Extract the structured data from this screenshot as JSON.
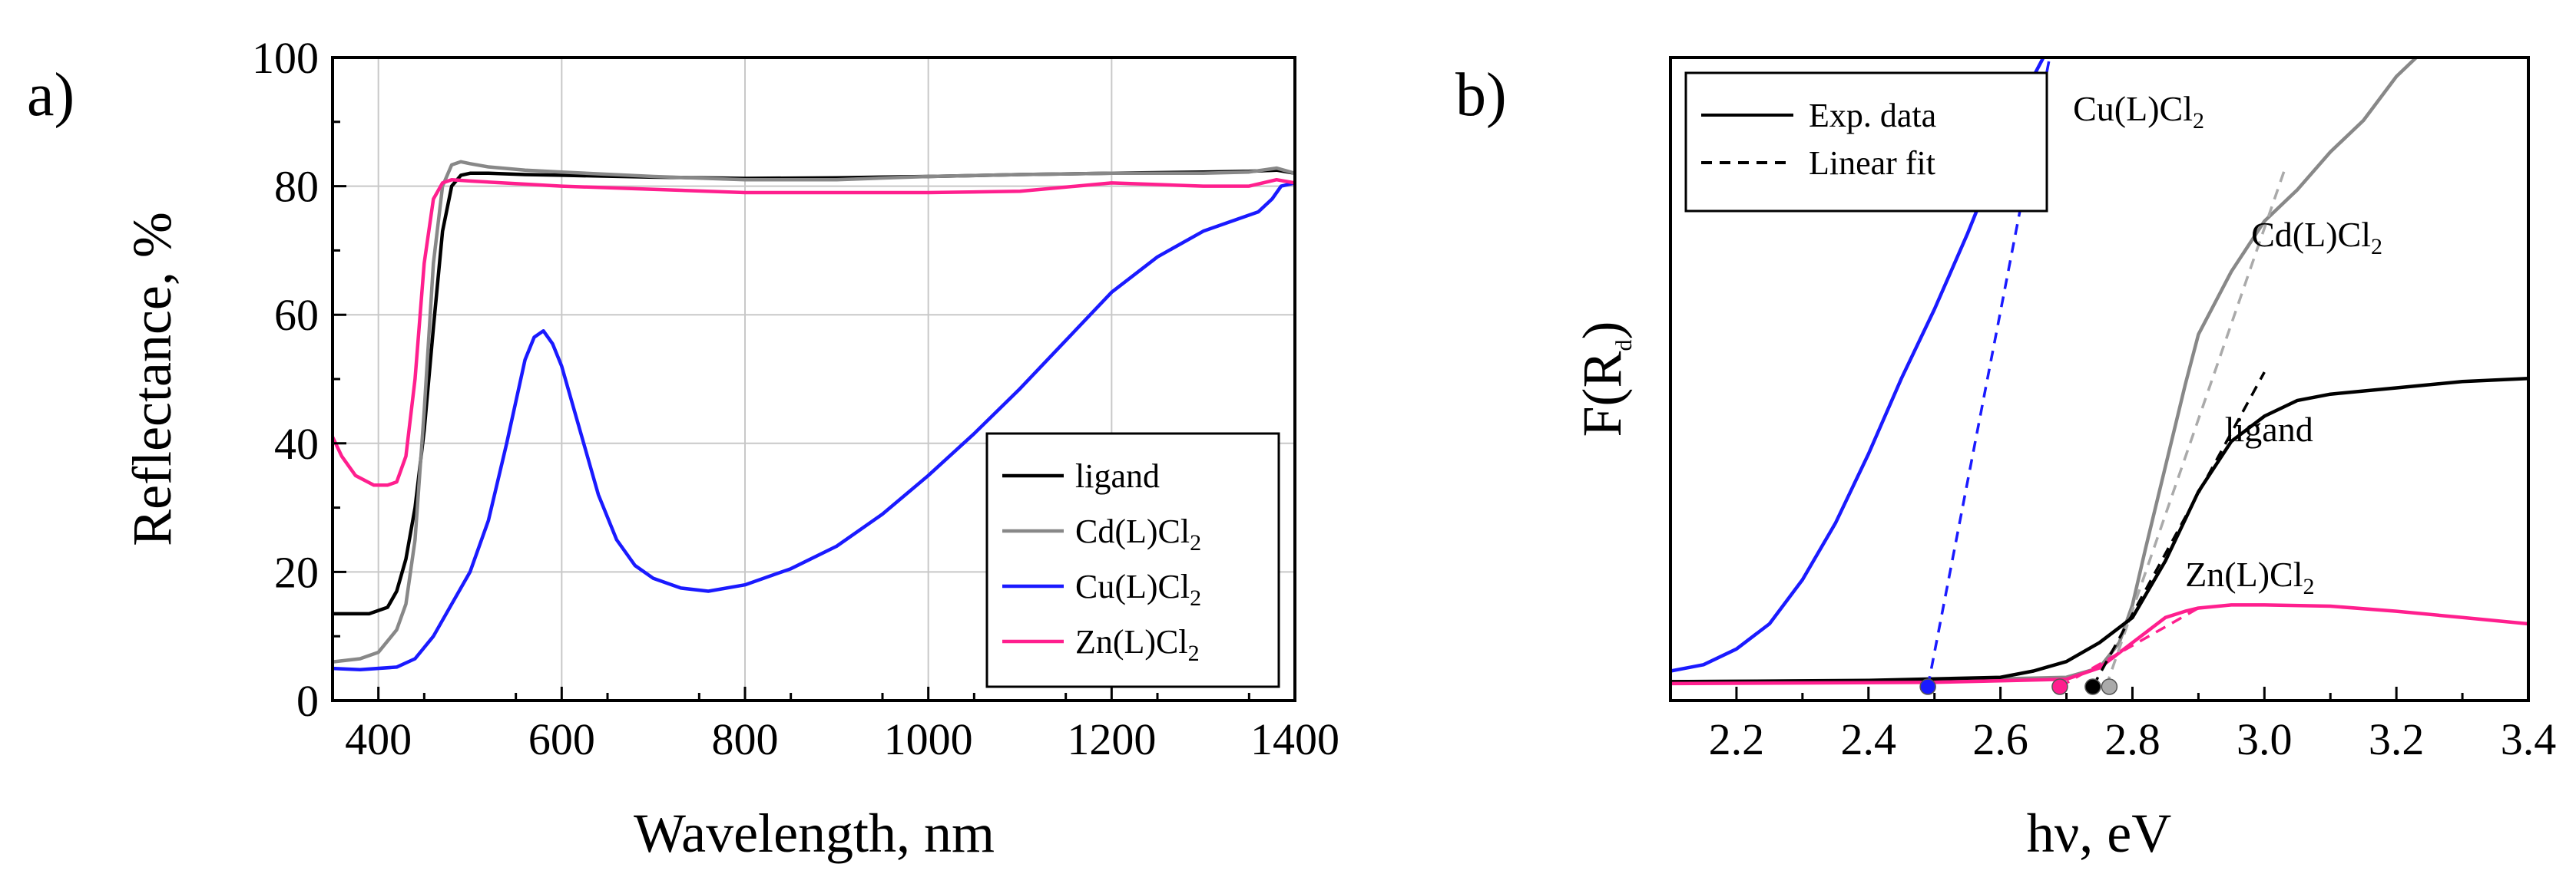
{
  "panel_labels": {
    "a": "a)",
    "b": "b)"
  },
  "chart_data": [
    {
      "type": "line",
      "panel": "a",
      "title": "",
      "xlabel": "Wavelength, nm",
      "ylabel": "Reflectance, %",
      "xlim": [
        350,
        1400
      ],
      "ylim": [
        0,
        100
      ],
      "xticks": [
        400,
        600,
        800,
        1000,
        1200,
        1400
      ],
      "yticks": [
        0,
        20,
        40,
        60,
        80,
        100
      ],
      "grid": true,
      "legend_position": "bottom-right",
      "series": [
        {
          "name": "ligand",
          "label_main": "ligand",
          "label_sub": "",
          "label_end": "",
          "color": "#000000",
          "x": [
            350,
            390,
            410,
            420,
            430,
            440,
            450,
            460,
            470,
            480,
            490,
            500,
            520,
            560,
            600,
            700,
            800,
            900,
            1000,
            1100,
            1200,
            1300,
            1350,
            1380,
            1400
          ],
          "y": [
            13.5,
            13.5,
            14.5,
            17,
            22,
            30,
            42,
            58,
            73,
            80,
            81.7,
            82,
            82,
            81.8,
            81.7,
            81.4,
            81.2,
            81.3,
            81.5,
            81.8,
            82,
            82.2,
            82.3,
            82.5,
            82
          ]
        },
        {
          "name": "Cd(L)Cl2",
          "label_main": "Cd(L)Cl",
          "label_sub": "2",
          "label_end": "",
          "color": "#888888",
          "x": [
            350,
            380,
            400,
            420,
            430,
            440,
            450,
            460,
            470,
            480,
            490,
            500,
            520,
            560,
            600,
            700,
            800,
            900,
            1000,
            1100,
            1200,
            1300,
            1350,
            1380,
            1400
          ],
          "y": [
            6,
            6.5,
            7.5,
            11,
            15,
            25,
            45,
            68,
            80,
            83.3,
            83.8,
            83.5,
            83,
            82.5,
            82.2,
            81.5,
            81,
            81,
            81.5,
            81.8,
            82,
            82,
            82.2,
            82.8,
            82
          ]
        },
        {
          "name": "Cu(L)Cl2",
          "label_main": "Cu(L)Cl",
          "label_sub": "2",
          "label_end": "",
          "color": "#1a1aff",
          "x": [
            350,
            380,
            420,
            440,
            460,
            480,
            500,
            520,
            540,
            560,
            570,
            580,
            590,
            600,
            620,
            640,
            660,
            680,
            700,
            730,
            760,
            800,
            850,
            900,
            950,
            1000,
            1050,
            1100,
            1150,
            1200,
            1250,
            1300,
            1340,
            1360,
            1375,
            1385,
            1400
          ],
          "y": [
            5,
            4.8,
            5.2,
            6.5,
            10,
            15,
            20,
            28,
            40,
            53,
            56.5,
            57.5,
            55.5,
            52,
            42,
            32,
            25,
            21,
            19,
            17.5,
            17,
            18,
            20.5,
            24,
            29,
            35,
            41.5,
            48.5,
            56,
            63.5,
            69,
            73,
            75,
            76,
            78,
            80,
            80.5
          ]
        },
        {
          "name": "Zn(L)Cl2",
          "label_main": "Zn(L)Cl",
          "label_sub": "2",
          "label_end": "",
          "color": "#ff1f8e",
          "x": [
            350,
            360,
            375,
            395,
            410,
            420,
            430,
            440,
            450,
            460,
            470,
            480,
            500,
            600,
            700,
            800,
            900,
            1000,
            1100,
            1200,
            1300,
            1350,
            1380,
            1400
          ],
          "y": [
            41,
            38,
            35,
            33.5,
            33.5,
            34,
            38,
            50,
            68,
            78,
            80.5,
            81,
            80.8,
            80,
            79.5,
            79,
            79,
            79,
            79.2,
            80.5,
            80,
            80,
            81,
            80.5
          ]
        }
      ]
    },
    {
      "type": "line",
      "panel": "b",
      "title": "",
      "xlabel": "hν, eV",
      "ylabel_main": "F(R",
      "ylabel_sub": "d",
      "ylabel_end": ")",
      "xlim": [
        2.1,
        3.4
      ],
      "ylim": [
        0,
        1
      ],
      "xticks": [
        "2.2",
        "2.4",
        "2.6",
        "2.8",
        "3.0",
        "3.2",
        "3.4"
      ],
      "grid": false,
      "legend_position": "top-left",
      "legend": [
        {
          "label": "Exp. data",
          "style": "solid"
        },
        {
          "label": "Linear fit",
          "style": "dashed"
        }
      ],
      "series": [
        {
          "name": "Cu(L)Cl2",
          "color": "#1a1aff",
          "style": "solid",
          "x": [
            2.1,
            2.15,
            2.2,
            2.25,
            2.3,
            2.35,
            2.4,
            2.45,
            2.5,
            2.55,
            2.6,
            2.65,
            2.68
          ],
          "y": [
            0.025,
            0.035,
            0.06,
            0.1,
            0.17,
            0.26,
            0.37,
            0.49,
            0.6,
            0.72,
            0.85,
            0.97,
            1.03
          ]
        },
        {
          "name": "Cd(L)Cl2",
          "color": "#888888",
          "style": "solid",
          "x": [
            2.1,
            2.5,
            2.7,
            2.75,
            2.78,
            2.8,
            2.82,
            2.85,
            2.88,
            2.9,
            2.95,
            3.0,
            3.05,
            3.1,
            3.15,
            3.2,
            3.25,
            3.3,
            3.35
          ],
          "y": [
            0.008,
            0.01,
            0.015,
            0.03,
            0.07,
            0.13,
            0.22,
            0.35,
            0.48,
            0.56,
            0.66,
            0.74,
            0.79,
            0.85,
            0.9,
            0.97,
            1.02,
            1.01,
            1.04
          ]
        },
        {
          "name": "ligand",
          "color": "#000000",
          "style": "solid",
          "x": [
            2.1,
            2.4,
            2.6,
            2.65,
            2.7,
            2.75,
            2.8,
            2.85,
            2.9,
            2.95,
            3.0,
            3.05,
            3.1,
            3.2,
            3.3,
            3.4
          ],
          "y": [
            0.008,
            0.01,
            0.015,
            0.025,
            0.04,
            0.07,
            0.11,
            0.2,
            0.31,
            0.39,
            0.43,
            0.455,
            0.465,
            0.475,
            0.485,
            0.49
          ]
        },
        {
          "name": "Zn(L)Cl2",
          "color": "#ff1f8e",
          "style": "solid",
          "x": [
            2.1,
            2.5,
            2.7,
            2.75,
            2.8,
            2.85,
            2.88,
            2.9,
            2.95,
            3.0,
            3.1,
            3.2,
            3.3,
            3.4
          ],
          "y": [
            0.005,
            0.007,
            0.012,
            0.03,
            0.07,
            0.11,
            0.12,
            0.125,
            0.13,
            0.13,
            0.128,
            0.12,
            0.11,
            0.1
          ]
        },
        {
          "name": "Cu(L)Cl2 fit",
          "color": "#1a1aff",
          "style": "dashed",
          "x": [
            2.49,
            2.68
          ],
          "y": [
            0.0,
            1.03
          ]
        },
        {
          "name": "Cd(L)Cl2 fit",
          "color": "#aaaaaa",
          "style": "dashed",
          "x": [
            2.76,
            3.03
          ],
          "y": [
            0.0,
            0.82
          ]
        },
        {
          "name": "ligand fit",
          "color": "#000000",
          "style": "dashed",
          "x": [
            2.74,
            3.0
          ],
          "y": [
            0.0,
            0.5
          ]
        },
        {
          "name": "Zn(L)Cl2 fit",
          "color": "#ff1f8e",
          "style": "dashed",
          "x": [
            2.69,
            2.9
          ],
          "y": [
            0.0,
            0.125
          ]
        }
      ],
      "markers": [
        {
          "name": "Cu(L)Cl2 edge",
          "x": 2.49,
          "color": "#1a1aff"
        },
        {
          "name": "Zn(L)Cl2 edge",
          "x": 2.69,
          "color": "#ff1f8e"
        },
        {
          "name": "ligand edge",
          "x": 2.74,
          "color": "#000000"
        },
        {
          "name": "Cd(L)Cl2 edge",
          "x": 2.765,
          "color": "#aaaaaa"
        }
      ],
      "annotations": [
        {
          "label_main": "Cu(L)Cl",
          "label_sub": "2",
          "x": 2.71,
          "y": 0.9
        },
        {
          "label_main": "Cd(L)Cl",
          "label_sub": "2",
          "x": 2.98,
          "y": 0.7
        },
        {
          "label_main": "ligand",
          "label_sub": "",
          "x": 2.94,
          "y": 0.39
        },
        {
          "label_main": "Zn(L)Cl",
          "label_sub": "2",
          "x": 2.88,
          "y": 0.16
        }
      ]
    }
  ]
}
